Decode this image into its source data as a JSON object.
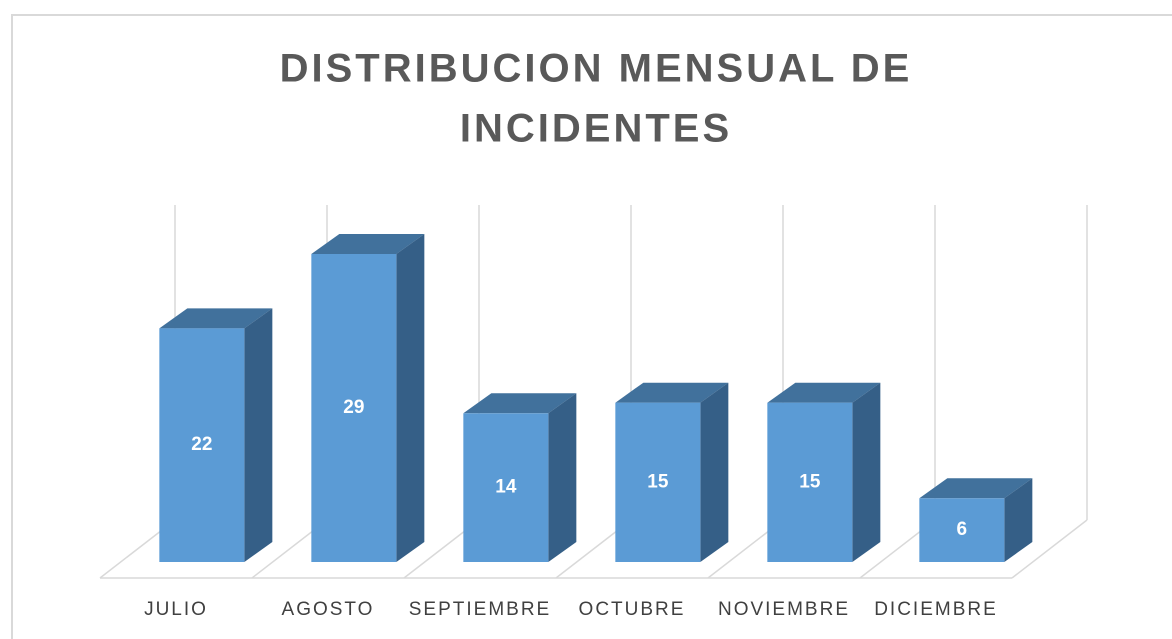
{
  "chart_data": {
    "type": "bar3d",
    "title": [
      "DISTRIBUCION MENSUAL DE",
      "INCIDENTES"
    ],
    "categories": [
      "JULIO",
      "AGOSTO",
      "SEPTIEMBRE",
      "OCTUBRE",
      "NOVIEMBRE",
      "DICIEMBRE"
    ],
    "values": [
      22,
      29,
      14,
      15,
      15,
      6
    ],
    "color": "#5b9bd5"
  }
}
